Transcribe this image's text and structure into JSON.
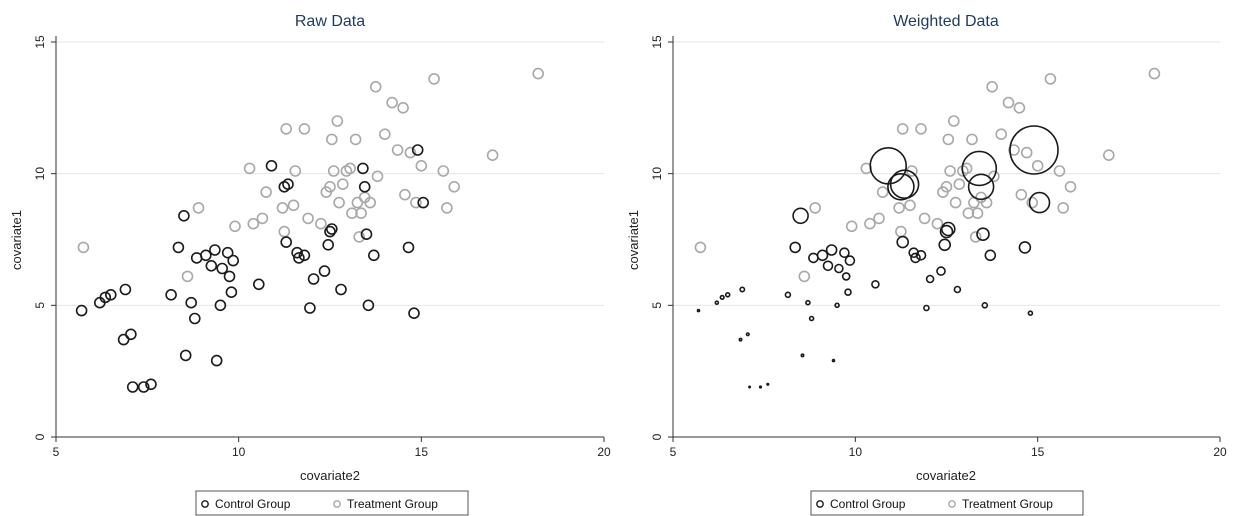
{
  "colors": {
    "control": "#1a1a1a",
    "treatment": "#a8a8a8",
    "title": "#1f3a5f"
  },
  "chart_data": [
    {
      "type": "scatter",
      "title": "Raw Data",
      "xlabel": "covariate2",
      "ylabel": "covariate1",
      "xlim": [
        5,
        20
      ],
      "ylim": [
        0,
        15
      ],
      "xticks": [
        "5",
        "10",
        "15",
        "20"
      ],
      "yticks": [
        "0",
        "5",
        "10",
        "15"
      ],
      "grid": true,
      "legend": [
        "Control Group",
        "Treatment Group"
      ],
      "legend_position": "bottom",
      "weighted": false,
      "series": [
        {
          "name": "Control Group",
          "points": [
            [
              5.7,
              4.8
            ],
            [
              6.2,
              5.1
            ],
            [
              6.35,
              5.3
            ],
            [
              6.5,
              5.4
            ],
            [
              6.85,
              3.7
            ],
            [
              6.9,
              5.6
            ],
            [
              7.05,
              3.9
            ],
            [
              7.1,
              1.9
            ],
            [
              7.4,
              1.9
            ],
            [
              7.6,
              2.0
            ],
            [
              8.15,
              5.4
            ],
            [
              8.35,
              7.2
            ],
            [
              8.5,
              8.4
            ],
            [
              8.55,
              3.1
            ],
            [
              8.7,
              5.1
            ],
            [
              8.8,
              4.5
            ],
            [
              8.85,
              6.8
            ],
            [
              9.1,
              6.9
            ],
            [
              9.25,
              6.5
            ],
            [
              9.35,
              7.1
            ],
            [
              9.4,
              2.9
            ],
            [
              9.5,
              5.0
            ],
            [
              9.55,
              6.4
            ],
            [
              9.7,
              7.0
            ],
            [
              9.75,
              6.1
            ],
            [
              9.8,
              5.5
            ],
            [
              9.85,
              6.7
            ],
            [
              10.55,
              5.8
            ],
            [
              10.9,
              10.3
            ],
            [
              11.25,
              9.5
            ],
            [
              11.3,
              7.4
            ],
            [
              11.35,
              9.6
            ],
            [
              11.6,
              7.0
            ],
            [
              11.65,
              6.8
            ],
            [
              11.8,
              6.9
            ],
            [
              11.95,
              4.9
            ],
            [
              12.05,
              6.0
            ],
            [
              12.35,
              6.3
            ],
            [
              12.45,
              7.3
            ],
            [
              12.5,
              7.8
            ],
            [
              12.55,
              7.9
            ],
            [
              12.8,
              5.6
            ],
            [
              13.4,
              10.2
            ],
            [
              13.45,
              9.5
            ],
            [
              13.5,
              7.7
            ],
            [
              13.55,
              5.0
            ],
            [
              13.7,
              6.9
            ],
            [
              14.65,
              7.2
            ],
            [
              14.8,
              4.7
            ],
            [
              14.9,
              10.9
            ],
            [
              15.05,
              8.9
            ]
          ]
        },
        {
          "name": "Treatment Group",
          "points": [
            [
              5.75,
              7.2
            ],
            [
              8.6,
              6.1
            ],
            [
              8.9,
              8.7
            ],
            [
              9.9,
              8.0
            ],
            [
              10.3,
              10.2
            ],
            [
              10.4,
              8.1
            ],
            [
              10.65,
              8.3
            ],
            [
              10.75,
              9.3
            ],
            [
              11.2,
              8.7
            ],
            [
              11.25,
              7.8
            ],
            [
              11.3,
              11.7
            ],
            [
              11.5,
              8.8
            ],
            [
              11.55,
              10.1
            ],
            [
              11.8,
              11.7
            ],
            [
              11.9,
              8.3
            ],
            [
              12.25,
              8.1
            ],
            [
              12.4,
              9.3
            ],
            [
              12.5,
              9.5
            ],
            [
              12.55,
              11.3
            ],
            [
              12.6,
              10.1
            ],
            [
              12.7,
              12.0
            ],
            [
              12.75,
              8.9
            ],
            [
              12.85,
              9.6
            ],
            [
              12.95,
              10.1
            ],
            [
              13.05,
              10.2
            ],
            [
              13.1,
              8.5
            ],
            [
              13.2,
              11.3
            ],
            [
              13.25,
              8.9
            ],
            [
              13.3,
              7.6
            ],
            [
              13.35,
              8.5
            ],
            [
              13.45,
              9.1
            ],
            [
              13.6,
              8.9
            ],
            [
              13.75,
              13.3
            ],
            [
              13.8,
              9.9
            ],
            [
              14.0,
              11.5
            ],
            [
              14.2,
              12.7
            ],
            [
              14.35,
              10.9
            ],
            [
              14.5,
              12.5
            ],
            [
              14.55,
              9.2
            ],
            [
              14.7,
              10.8
            ],
            [
              14.85,
              8.9
            ],
            [
              15.0,
              10.3
            ],
            [
              15.35,
              13.6
            ],
            [
              15.6,
              10.1
            ],
            [
              15.7,
              8.7
            ],
            [
              15.9,
              9.5
            ],
            [
              16.95,
              10.7
            ],
            [
              18.2,
              13.8
            ]
          ]
        }
      ]
    },
    {
      "type": "scatter",
      "title": "Weighted Data",
      "xlabel": "covariate2",
      "ylabel": "covariate1",
      "xlim": [
        5,
        20
      ],
      "ylim": [
        0,
        15
      ],
      "xticks": [
        "5",
        "10",
        "15",
        "20"
      ],
      "yticks": [
        "0",
        "5",
        "10",
        "15"
      ],
      "grid": true,
      "legend": [
        "Control Group",
        "Treatment Group"
      ],
      "legend_position": "bottom",
      "weighted": true,
      "series": [
        {
          "name": "Control Group",
          "points": [
            [
              5.7,
              4.8,
              1.0
            ],
            [
              6.2,
              5.1,
              1.5
            ],
            [
              6.35,
              5.3,
              1.8
            ],
            [
              6.5,
              5.4,
              2.0
            ],
            [
              6.85,
              3.7,
              1.2
            ],
            [
              6.9,
              5.6,
              2.2
            ],
            [
              7.05,
              3.9,
              1.3
            ],
            [
              7.1,
              1.9,
              0.7
            ],
            [
              7.4,
              1.9,
              0.8
            ],
            [
              7.6,
              2.0,
              0.8
            ],
            [
              8.15,
              5.4,
              2.5
            ],
            [
              8.35,
              7.2,
              5.0
            ],
            [
              8.5,
              8.4,
              7.5
            ],
            [
              8.55,
              3.1,
              1.2
            ],
            [
              8.7,
              5.1,
              2.0
            ],
            [
              8.8,
              4.5,
              2.0
            ],
            [
              8.85,
              6.8,
              4.5
            ],
            [
              9.1,
              6.9,
              5.0
            ],
            [
              9.25,
              6.5,
              4.5
            ],
            [
              9.35,
              7.1,
              5.0
            ],
            [
              9.4,
              2.9,
              1.0
            ],
            [
              9.5,
              5.0,
              2.0
            ],
            [
              9.55,
              6.4,
              4.0
            ],
            [
              9.7,
              7.0,
              4.5
            ],
            [
              9.75,
              6.1,
              3.5
            ],
            [
              9.8,
              5.5,
              3.0
            ],
            [
              9.85,
              6.7,
              4.5
            ],
            [
              10.55,
              5.8,
              3.5
            ],
            [
              10.9,
              10.3,
              18.0
            ],
            [
              11.25,
              9.5,
              13.0
            ],
            [
              11.3,
              7.4,
              5.5
            ],
            [
              11.35,
              9.6,
              14.0
            ],
            [
              11.6,
              7.0,
              4.5
            ],
            [
              11.65,
              6.8,
              4.5
            ],
            [
              11.8,
              6.9,
              4.5
            ],
            [
              11.95,
              4.9,
              2.5
            ],
            [
              12.05,
              6.0,
              3.5
            ],
            [
              12.35,
              6.3,
              4.0
            ],
            [
              12.45,
              7.3,
              5.5
            ],
            [
              12.5,
              7.8,
              6.0
            ],
            [
              12.55,
              7.9,
              6.5
            ],
            [
              12.8,
              5.6,
              3.0
            ],
            [
              13.4,
              10.2,
              17.0
            ],
            [
              13.45,
              9.5,
              12.5
            ],
            [
              13.5,
              7.7,
              6.0
            ],
            [
              13.55,
              5.0,
              2.5
            ],
            [
              13.7,
              6.9,
              5.0
            ],
            [
              14.65,
              7.2,
              5.5
            ],
            [
              14.8,
              4.7,
              2.0
            ],
            [
              14.9,
              10.9,
              24.0
            ],
            [
              15.05,
              8.9,
              10.0
            ]
          ]
        },
        {
          "name": "Treatment Group",
          "points": [
            [
              5.75,
              7.2,
              5.0
            ],
            [
              8.6,
              6.1,
              5.0
            ],
            [
              8.9,
              8.7,
              5.0
            ],
            [
              9.9,
              8.0,
              5.0
            ],
            [
              10.3,
              10.2,
              5.0
            ],
            [
              10.4,
              8.1,
              5.0
            ],
            [
              10.65,
              8.3,
              5.0
            ],
            [
              10.75,
              9.3,
              5.0
            ],
            [
              11.2,
              8.7,
              5.0
            ],
            [
              11.25,
              7.8,
              5.0
            ],
            [
              11.3,
              11.7,
              5.0
            ],
            [
              11.5,
              8.8,
              5.0
            ],
            [
              11.55,
              10.1,
              5.0
            ],
            [
              11.8,
              11.7,
              5.0
            ],
            [
              11.9,
              8.3,
              5.0
            ],
            [
              12.25,
              8.1,
              5.0
            ],
            [
              12.4,
              9.3,
              5.0
            ],
            [
              12.5,
              9.5,
              5.0
            ],
            [
              12.55,
              11.3,
              5.0
            ],
            [
              12.6,
              10.1,
              5.0
            ],
            [
              12.7,
              12.0,
              5.0
            ],
            [
              12.75,
              8.9,
              5.0
            ],
            [
              12.85,
              9.6,
              5.0
            ],
            [
              12.95,
              10.1,
              5.0
            ],
            [
              13.05,
              10.2,
              5.0
            ],
            [
              13.1,
              8.5,
              5.0
            ],
            [
              13.2,
              11.3,
              5.0
            ],
            [
              13.25,
              8.9,
              5.0
            ],
            [
              13.3,
              7.6,
              5.0
            ],
            [
              13.35,
              8.5,
              5.0
            ],
            [
              13.45,
              9.1,
              5.0
            ],
            [
              13.6,
              8.9,
              5.0
            ],
            [
              13.75,
              13.3,
              5.0
            ],
            [
              13.8,
              9.9,
              5.0
            ],
            [
              14.0,
              11.5,
              5.0
            ],
            [
              14.2,
              12.7,
              5.0
            ],
            [
              14.35,
              10.9,
              5.0
            ],
            [
              14.5,
              12.5,
              5.0
            ],
            [
              14.55,
              9.2,
              5.0
            ],
            [
              14.7,
              10.8,
              5.0
            ],
            [
              14.85,
              8.9,
              5.0
            ],
            [
              15.0,
              10.3,
              5.0
            ],
            [
              15.35,
              13.6,
              5.0
            ],
            [
              15.6,
              10.1,
              5.0
            ],
            [
              15.7,
              8.7,
              5.0
            ],
            [
              15.9,
              9.5,
              5.0
            ],
            [
              16.95,
              10.7,
              5.0
            ],
            [
              18.2,
              13.8,
              5.0
            ]
          ]
        }
      ]
    }
  ]
}
